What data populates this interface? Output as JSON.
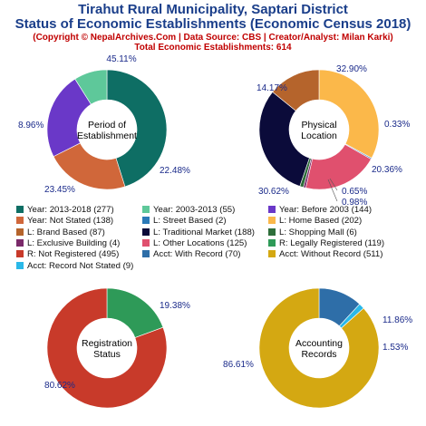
{
  "header": {
    "title1": "Tirahut Rural Municipality, Saptari District",
    "title2": "Status of Economic Establishments (Economic Census 2018)",
    "copyright": "(Copyright © NepalArchives.Com | Data Source: CBS | Creator/Analyst: Milan Karki)",
    "total": "Total Economic Establishments: 614"
  },
  "chart_data": [
    {
      "type": "pie",
      "center_label": [
        "Period of",
        "Establishment"
      ],
      "slices": [
        {
          "label": "Year: 2013-2018",
          "count": 277,
          "pct": "45.11%",
          "color": "#0e6e64"
        },
        {
          "label": "Year: Not Stated",
          "count": 138,
          "pct": "22.48%",
          "color": "#d0673a"
        },
        {
          "label": "Year: Before 2003",
          "count": 144,
          "pct": "23.45%",
          "color": "#6a38c8"
        },
        {
          "label": "Year: 2003-2013",
          "count": 55,
          "pct": "8.96%",
          "color": "#5ec89a"
        }
      ]
    },
    {
      "type": "pie",
      "center_label": [
        "Physical",
        "Location"
      ],
      "slices": [
        {
          "label": "L: Home Based",
          "count": 202,
          "pct": "32.90%",
          "color": "#fbb84a"
        },
        {
          "label": "L: Street Based",
          "count": 2,
          "pct": "0.33%",
          "color": "#2b7ab8"
        },
        {
          "label": "L: Other Locations",
          "count": 125,
          "pct": "20.36%",
          "color": "#e0506e"
        },
        {
          "label": "L: Exclusive Building",
          "count": 4,
          "pct": "0.65%",
          "color": "#7a2a6a"
        },
        {
          "label": "L: Shopping Mall",
          "count": 6,
          "pct": "0.98%",
          "color": "#2e6e3a"
        },
        {
          "label": "L: Traditional Market",
          "count": 188,
          "pct": "30.62%",
          "color": "#0b0b3a"
        },
        {
          "label": "L: Brand Based",
          "count": 87,
          "pct": "14.17%",
          "color": "#b5642c"
        }
      ]
    },
    {
      "type": "pie",
      "center_label": [
        "Registration",
        "Status"
      ],
      "slices": [
        {
          "label": "R: Legally Registered",
          "count": 119,
          "pct": "19.38%",
          "color": "#2e9a58"
        },
        {
          "label": "R: Not Registered",
          "count": 495,
          "pct": "80.62%",
          "color": "#c83a2a"
        }
      ]
    },
    {
      "type": "pie",
      "center_label": [
        "Accounting",
        "Records"
      ],
      "slices": [
        {
          "label": "Acct: With Record",
          "count": 70,
          "pct": "11.86%",
          "color": "#2e6ea8"
        },
        {
          "label": "Acct: Record Not Stated",
          "count": 9,
          "pct": "1.53%",
          "color": "#2ab8e8"
        },
        {
          "label": "Acct: Without Record",
          "count": 511,
          "pct": "86.61%",
          "color": "#d4a812"
        }
      ]
    }
  ],
  "legend": [
    {
      "text": "Year: 2013-2018 (277)",
      "color": "#0e6e64"
    },
    {
      "text": "Year: 2003-2013 (55)",
      "color": "#5ec89a"
    },
    {
      "text": "Year: Before 2003 (144)",
      "color": "#6a38c8"
    },
    {
      "text": "Year: Not Stated (138)",
      "color": "#d0673a"
    },
    {
      "text": "L: Street Based (2)",
      "color": "#2b7ab8"
    },
    {
      "text": "L: Home Based (202)",
      "color": "#fbb84a"
    },
    {
      "text": "L: Brand Based (87)",
      "color": "#b5642c"
    },
    {
      "text": "L: Traditional Market (188)",
      "color": "#0b0b3a"
    },
    {
      "text": "L: Shopping Mall (6)",
      "color": "#2e6e3a"
    },
    {
      "text": "L: Exclusive Building (4)",
      "color": "#7a2a6a"
    },
    {
      "text": "L: Other Locations (125)",
      "color": "#e0506e"
    },
    {
      "text": "R: Legally Registered (119)",
      "color": "#2e9a58"
    },
    {
      "text": "R: Not Registered (495)",
      "color": "#c83a2a"
    },
    {
      "text": "Acct: With Record (70)",
      "color": "#2e6ea8"
    },
    {
      "text": "Acct: Without Record (511)",
      "color": "#d4a812"
    },
    {
      "text": "Acct: Record Not Stated (9)",
      "color": "#2ab8e8"
    }
  ]
}
